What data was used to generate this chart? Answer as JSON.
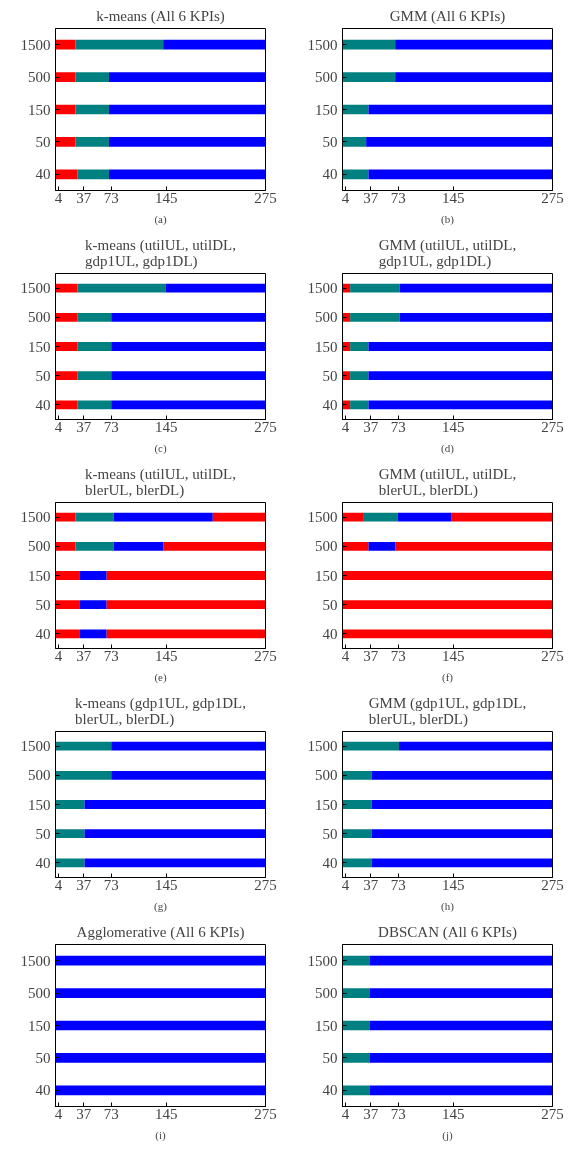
{
  "chart_data": [
    {
      "type": "bar",
      "orientation": "horizontal",
      "stacked": true,
      "title": "k-means (All 6 KPIs)",
      "annotations": [
        "(a)"
      ],
      "categories": [
        "1500",
        "500",
        "150",
        "50",
        "40"
      ],
      "xlim": [
        0,
        275
      ],
      "xticks": [
        4,
        37,
        73,
        145,
        275
      ],
      "series": [
        {
          "color": "#ff0000",
          "values": [
            26,
            26,
            26,
            26,
            29
          ]
        },
        {
          "color": "#008080",
          "values": [
            115,
            44,
            44,
            44,
            41
          ]
        },
        {
          "color": "#0000ff",
          "values": [
            134,
            205,
            205,
            205,
            205
          ]
        }
      ]
    },
    {
      "type": "bar",
      "orientation": "horizontal",
      "stacked": true,
      "title": "GMM (All 6 KPIs)",
      "annotations": [
        "(b)"
      ],
      "categories": [
        "1500",
        "500",
        "150",
        "50",
        "40"
      ],
      "xlim": [
        0,
        275
      ],
      "xticks": [
        4,
        37,
        73,
        145,
        275
      ],
      "series": [
        {
          "color": "#008080",
          "values": [
            69,
            69,
            34,
            31,
            34
          ]
        },
        {
          "color": "#0000ff",
          "values": [
            206,
            206,
            241,
            244,
            241
          ]
        }
      ]
    },
    {
      "type": "bar",
      "orientation": "horizontal",
      "stacked": true,
      "title": "k-means (utilUL, utilDL,\ngdp1UL, gdp1DL)",
      "annotations": [
        "(c)"
      ],
      "categories": [
        "1500",
        "500",
        "150",
        "50",
        "40"
      ],
      "xlim": [
        0,
        275
      ],
      "xticks": [
        4,
        37,
        73,
        145,
        275
      ],
      "series": [
        {
          "color": "#ff0000",
          "values": [
            29,
            29,
            29,
            29,
            29
          ]
        },
        {
          "color": "#008080",
          "values": [
            115,
            44,
            44,
            44,
            44
          ]
        },
        {
          "color": "#0000ff",
          "values": [
            131,
            202,
            202,
            202,
            202
          ]
        }
      ]
    },
    {
      "type": "bar",
      "orientation": "horizontal",
      "stacked": true,
      "title": "GMM (utilUL, utilDL,\ngdp1UL, gdp1DL)",
      "annotations": [
        "(d)"
      ],
      "categories": [
        "1500",
        "500",
        "150",
        "50",
        "40"
      ],
      "xlim": [
        0,
        275
      ],
      "xticks": [
        4,
        37,
        73,
        145,
        275
      ],
      "series": [
        {
          "color": "#ff0000",
          "values": [
            10,
            10,
            10,
            10,
            10
          ]
        },
        {
          "color": "#008080",
          "values": [
            65,
            65,
            24,
            24,
            24
          ]
        },
        {
          "color": "#0000ff",
          "values": [
            200,
            200,
            241,
            241,
            241
          ]
        }
      ]
    },
    {
      "type": "bar",
      "orientation": "horizontal",
      "stacked": true,
      "title": "k-means (utilUL, utilDL,\nblerUL, blerDL)",
      "annotations": [
        "(e)"
      ],
      "categories": [
        "1500",
        "500",
        "150",
        "50",
        "40"
      ],
      "xlim": [
        0,
        275
      ],
      "xticks": [
        4,
        37,
        73,
        145,
        275
      ],
      "series": [
        {
          "color": "#ff0000",
          "values": [
            26,
            26,
            32,
            32,
            32
          ]
        },
        {
          "color": "#008080",
          "values": [
            50,
            50,
            null,
            null,
            null
          ]
        },
        {
          "color": "#0000ff",
          "values": [
            130,
            65,
            35,
            35,
            35
          ]
        },
        {
          "color": "#ff0000",
          "values": [
            69,
            134,
            208,
            208,
            208
          ]
        }
      ]
    },
    {
      "type": "bar",
      "orientation": "horizontal",
      "stacked": true,
      "title": "GMM (utilUL, utilDL,\nblerUL, blerDL)",
      "annotations": [
        "(f)"
      ],
      "categories": [
        "1500",
        "500",
        "150",
        "50",
        "40"
      ],
      "xlim": [
        0,
        275
      ],
      "xticks": [
        4,
        37,
        73,
        145,
        275
      ],
      "series": [
        {
          "color": "#ff0000",
          "values": [
            28,
            34,
            275,
            275,
            275
          ]
        },
        {
          "color": "#008080",
          "values": [
            44,
            null,
            null,
            null,
            null
          ]
        },
        {
          "color": "#0000ff",
          "values": [
            71,
            35,
            null,
            null,
            null
          ]
        },
        {
          "color": "#ff0000",
          "values": [
            132,
            206,
            null,
            null,
            null
          ]
        }
      ]
    },
    {
      "type": "bar",
      "orientation": "horizontal",
      "stacked": true,
      "title": "k-means (gdp1UL, gdp1DL,\nblerUL, blerDL)",
      "annotations": [
        "(g)"
      ],
      "categories": [
        "1500",
        "500",
        "150",
        "50",
        "40"
      ],
      "xlim": [
        0,
        275
      ],
      "xticks": [
        4,
        37,
        73,
        145,
        275
      ],
      "series": [
        {
          "color": "#008080",
          "values": [
            73,
            73,
            38,
            38,
            38
          ]
        },
        {
          "color": "#0000ff",
          "values": [
            202,
            202,
            237,
            237,
            237
          ]
        }
      ]
    },
    {
      "type": "bar",
      "orientation": "horizontal",
      "stacked": true,
      "title": "GMM (gdp1UL, gdp1DL,\nblerUL, blerDL)",
      "annotations": [
        "(h)"
      ],
      "categories": [
        "1500",
        "500",
        "150",
        "50",
        "40"
      ],
      "xlim": [
        0,
        275
      ],
      "xticks": [
        4,
        37,
        73,
        145,
        275
      ],
      "series": [
        {
          "color": "#008080",
          "values": [
            74,
            38,
            38,
            38,
            38
          ]
        },
        {
          "color": "#0000ff",
          "values": [
            201,
            237,
            237,
            237,
            237
          ]
        }
      ]
    },
    {
      "type": "bar",
      "orientation": "horizontal",
      "stacked": true,
      "title": "Agglomerative (All 6 KPIs)",
      "annotations": [
        "(i)"
      ],
      "categories": [
        "1500",
        "500",
        "150",
        "50",
        "40"
      ],
      "xlim": [
        0,
        275
      ],
      "xticks": [
        4,
        37,
        73,
        145,
        275
      ],
      "series": [
        {
          "color": "#0000ff",
          "values": [
            275,
            275,
            275,
            275,
            275
          ]
        }
      ]
    },
    {
      "type": "bar",
      "orientation": "horizontal",
      "stacked": true,
      "title": "DBSCAN (All 6 KPIs)",
      "annotations": [
        "(j)"
      ],
      "categories": [
        "1500",
        "500",
        "150",
        "50",
        "40"
      ],
      "xlim": [
        0,
        275
      ],
      "xticks": [
        4,
        37,
        73,
        145,
        275
      ],
      "series": [
        {
          "color": "#008080",
          "values": [
            36,
            36,
            36,
            36,
            36
          ]
        },
        {
          "color": "#0000ff",
          "values": [
            239,
            239,
            239,
            239,
            239
          ]
        }
      ]
    }
  ]
}
